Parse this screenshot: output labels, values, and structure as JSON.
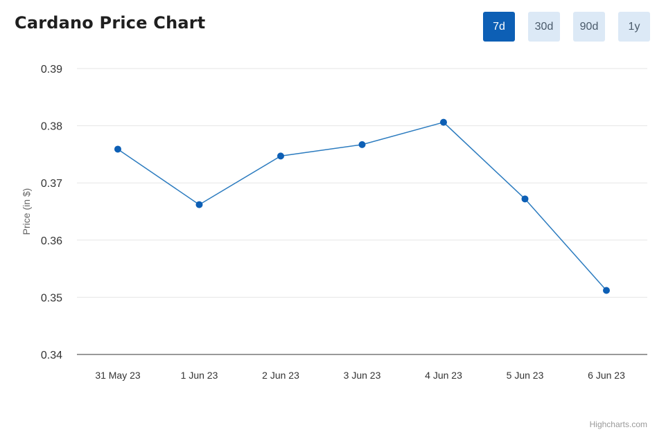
{
  "header": {
    "title": "Cardano Price Chart"
  },
  "range_tabs": [
    {
      "label": "7d",
      "active": true
    },
    {
      "label": "30d",
      "active": false
    },
    {
      "label": "90d",
      "active": false
    },
    {
      "label": "1y",
      "active": false
    }
  ],
  "colors": {
    "accent": "#0d5fb5",
    "tab_inactive_bg": "#dce9f6",
    "series_line": "#2b7bbf",
    "series_marker": "#0d5fb5",
    "gridline": "#e6e6e6",
    "axis_line": "#333333"
  },
  "credit": "Highcharts.com",
  "chart_data": {
    "type": "line",
    "x": [
      "31 May 23",
      "1 Jun 23",
      "2 Jun 23",
      "3 Jun 23",
      "4 Jun 23",
      "5 Jun 23",
      "6 Jun 23"
    ],
    "series": [
      {
        "values": [
          0.3759,
          0.3662,
          0.3747,
          0.3767,
          0.3806,
          0.3672,
          0.3512
        ]
      }
    ],
    "ylabel": "Price (in $)",
    "xlabel": "",
    "ylim": [
      0.34,
      0.39
    ],
    "yticks": [
      "0.34",
      "0.35",
      "0.36",
      "0.37",
      "0.38",
      "0.39"
    ],
    "grid": true,
    "legend": "none"
  }
}
